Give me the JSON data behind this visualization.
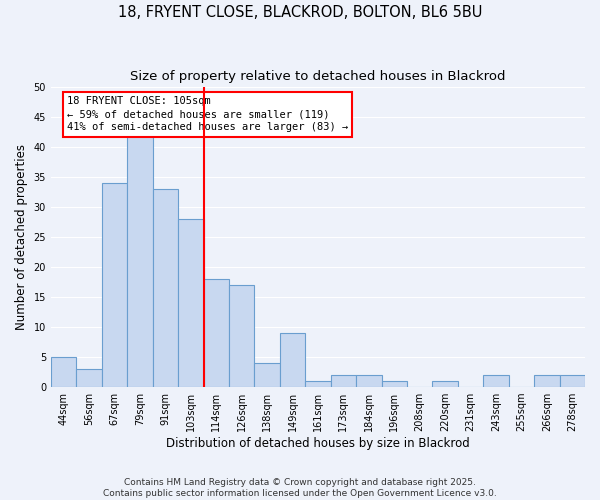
{
  "title": "18, FRYENT CLOSE, BLACKROD, BOLTON, BL6 5BU",
  "subtitle": "Size of property relative to detached houses in Blackrod",
  "xlabel": "Distribution of detached houses by size in Blackrod",
  "ylabel": "Number of detached properties",
  "categories": [
    "44sqm",
    "56sqm",
    "67sqm",
    "79sqm",
    "91sqm",
    "103sqm",
    "114sqm",
    "126sqm",
    "138sqm",
    "149sqm",
    "161sqm",
    "173sqm",
    "184sqm",
    "196sqm",
    "208sqm",
    "220sqm",
    "231sqm",
    "243sqm",
    "255sqm",
    "266sqm",
    "278sqm"
  ],
  "values": [
    5,
    3,
    34,
    42,
    33,
    28,
    18,
    17,
    4,
    9,
    1,
    2,
    2,
    1,
    0,
    1,
    0,
    2,
    0,
    2,
    2
  ],
  "bar_color": "#c8d8f0",
  "bar_edgecolor": "#6a9ecf",
  "vline_x_index": 5.5,
  "annotation_lines": [
    "18 FRYENT CLOSE: 105sqm",
    "← 59% of detached houses are smaller (119)",
    "41% of semi-detached houses are larger (83) →"
  ],
  "ylim": [
    0,
    50
  ],
  "yticks": [
    0,
    5,
    10,
    15,
    20,
    25,
    30,
    35,
    40,
    45,
    50
  ],
  "footer": "Contains HM Land Registry data © Crown copyright and database right 2025.\nContains public sector information licensed under the Open Government Licence v3.0.",
  "bg_color": "#eef2fa",
  "grid_color": "#ffffff",
  "title_fontsize": 10.5,
  "subtitle_fontsize": 9.5,
  "axis_label_fontsize": 8.5,
  "tick_fontsize": 7.0,
  "footer_fontsize": 6.5
}
